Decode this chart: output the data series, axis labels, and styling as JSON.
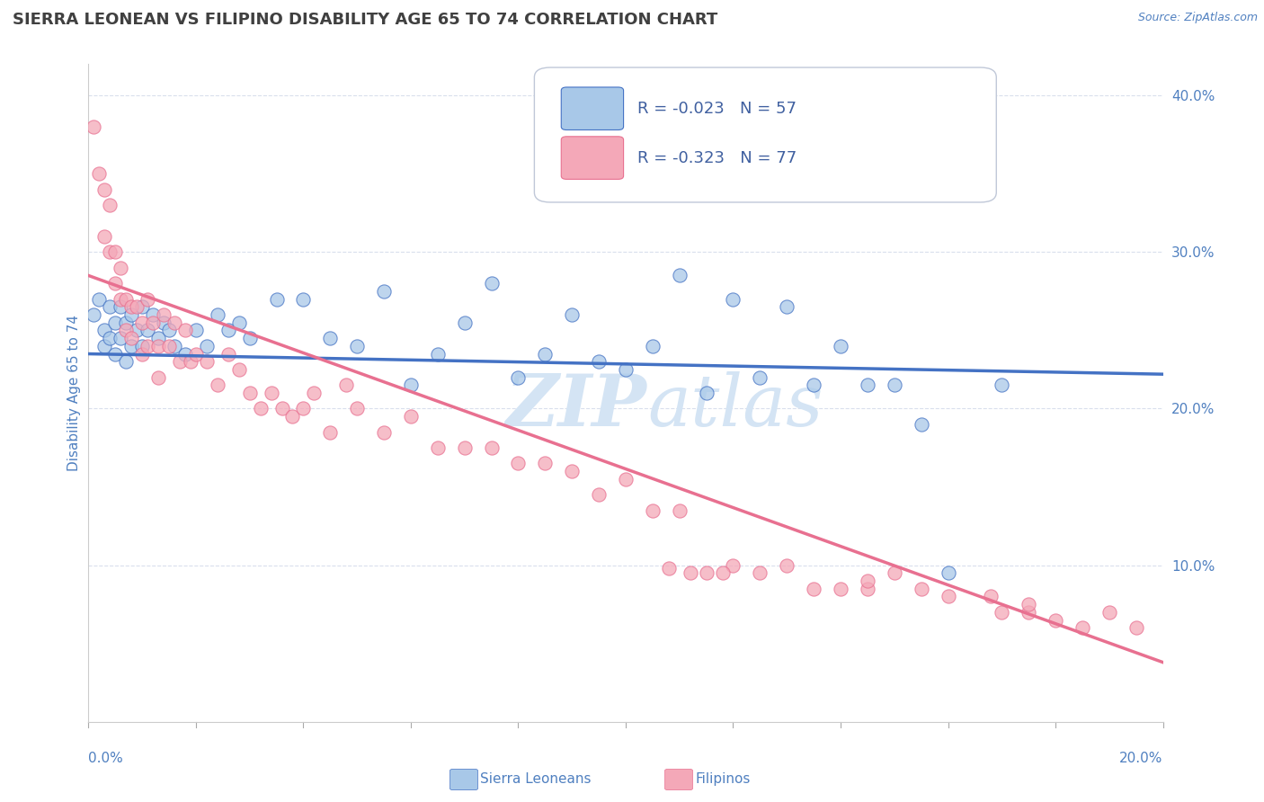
{
  "title": "SIERRA LEONEAN VS FILIPINO DISABILITY AGE 65 TO 74 CORRELATION CHART",
  "source": "Source: ZipAtlas.com",
  "ylabel": "Disability Age 65 to 74",
  "xmin": 0.0,
  "xmax": 0.2,
  "ymin": 0.0,
  "ymax": 0.42,
  "yticks": [
    0.1,
    0.2,
    0.3,
    0.4
  ],
  "ytick_labels": [
    "10.0%",
    "20.0%",
    "30.0%",
    "40.0%"
  ],
  "legend_r_sl": "R = -0.023",
  "legend_n_sl": "N = 57",
  "legend_r_fi": "R = -0.323",
  "legend_n_fi": "N = 77",
  "color_sl": "#a8c8e8",
  "color_fi": "#f4a8b8",
  "line_color_sl": "#4472c4",
  "line_color_fi": "#e87090",
  "background_color": "#ffffff",
  "grid_color": "#d0d8e8",
  "watermark_color": "#d4e4f4",
  "title_color": "#404040",
  "axis_label_color": "#5080c0",
  "legend_text_color": "#4060a0",
  "sl_trend_x0": 0.0,
  "sl_trend_y0": 0.235,
  "sl_trend_x1": 0.2,
  "sl_trend_y1": 0.222,
  "fi_trend_x0": 0.0,
  "fi_trend_y0": 0.285,
  "fi_trend_x1": 0.2,
  "fi_trend_y1": 0.038,
  "sierra_leonean_x": [
    0.001,
    0.002,
    0.003,
    0.003,
    0.004,
    0.004,
    0.005,
    0.005,
    0.006,
    0.006,
    0.007,
    0.007,
    0.008,
    0.008,
    0.009,
    0.01,
    0.01,
    0.011,
    0.012,
    0.013,
    0.014,
    0.015,
    0.016,
    0.018,
    0.02,
    0.022,
    0.024,
    0.026,
    0.028,
    0.03,
    0.035,
    0.04,
    0.045,
    0.05,
    0.055,
    0.06,
    0.065,
    0.07,
    0.075,
    0.08,
    0.085,
    0.09,
    0.095,
    0.1,
    0.105,
    0.11,
    0.115,
    0.12,
    0.125,
    0.13,
    0.135,
    0.14,
    0.145,
    0.15,
    0.155,
    0.16,
    0.17
  ],
  "sierra_leonean_y": [
    0.26,
    0.27,
    0.25,
    0.24,
    0.265,
    0.245,
    0.255,
    0.235,
    0.265,
    0.245,
    0.255,
    0.23,
    0.26,
    0.24,
    0.25,
    0.265,
    0.24,
    0.25,
    0.26,
    0.245,
    0.255,
    0.25,
    0.24,
    0.235,
    0.25,
    0.24,
    0.26,
    0.25,
    0.255,
    0.245,
    0.27,
    0.27,
    0.245,
    0.24,
    0.275,
    0.215,
    0.235,
    0.255,
    0.28,
    0.22,
    0.235,
    0.26,
    0.23,
    0.225,
    0.24,
    0.285,
    0.21,
    0.27,
    0.22,
    0.265,
    0.215,
    0.24,
    0.215,
    0.215,
    0.19,
    0.095,
    0.215
  ],
  "filipino_x": [
    0.001,
    0.002,
    0.003,
    0.003,
    0.004,
    0.004,
    0.005,
    0.005,
    0.006,
    0.006,
    0.007,
    0.007,
    0.008,
    0.008,
    0.009,
    0.01,
    0.01,
    0.011,
    0.011,
    0.012,
    0.013,
    0.013,
    0.014,
    0.015,
    0.016,
    0.017,
    0.018,
    0.019,
    0.02,
    0.022,
    0.024,
    0.026,
    0.028,
    0.03,
    0.032,
    0.034,
    0.036,
    0.038,
    0.04,
    0.042,
    0.045,
    0.048,
    0.05,
    0.055,
    0.06,
    0.065,
    0.07,
    0.075,
    0.08,
    0.085,
    0.09,
    0.095,
    0.1,
    0.105,
    0.11,
    0.115,
    0.12,
    0.125,
    0.13,
    0.14,
    0.145,
    0.15,
    0.155,
    0.16,
    0.17,
    0.175,
    0.18,
    0.185,
    0.19,
    0.195,
    0.108,
    0.112,
    0.118,
    0.135,
    0.145,
    0.168,
    0.175
  ],
  "filipino_y": [
    0.38,
    0.35,
    0.34,
    0.31,
    0.33,
    0.3,
    0.3,
    0.28,
    0.29,
    0.27,
    0.27,
    0.25,
    0.265,
    0.245,
    0.265,
    0.255,
    0.235,
    0.27,
    0.24,
    0.255,
    0.24,
    0.22,
    0.26,
    0.24,
    0.255,
    0.23,
    0.25,
    0.23,
    0.235,
    0.23,
    0.215,
    0.235,
    0.225,
    0.21,
    0.2,
    0.21,
    0.2,
    0.195,
    0.2,
    0.21,
    0.185,
    0.215,
    0.2,
    0.185,
    0.195,
    0.175,
    0.175,
    0.175,
    0.165,
    0.165,
    0.16,
    0.145,
    0.155,
    0.135,
    0.135,
    0.095,
    0.1,
    0.095,
    0.1,
    0.085,
    0.085,
    0.095,
    0.085,
    0.08,
    0.07,
    0.07,
    0.065,
    0.06,
    0.07,
    0.06,
    0.098,
    0.095,
    0.095,
    0.085,
    0.09,
    0.08,
    0.075
  ]
}
